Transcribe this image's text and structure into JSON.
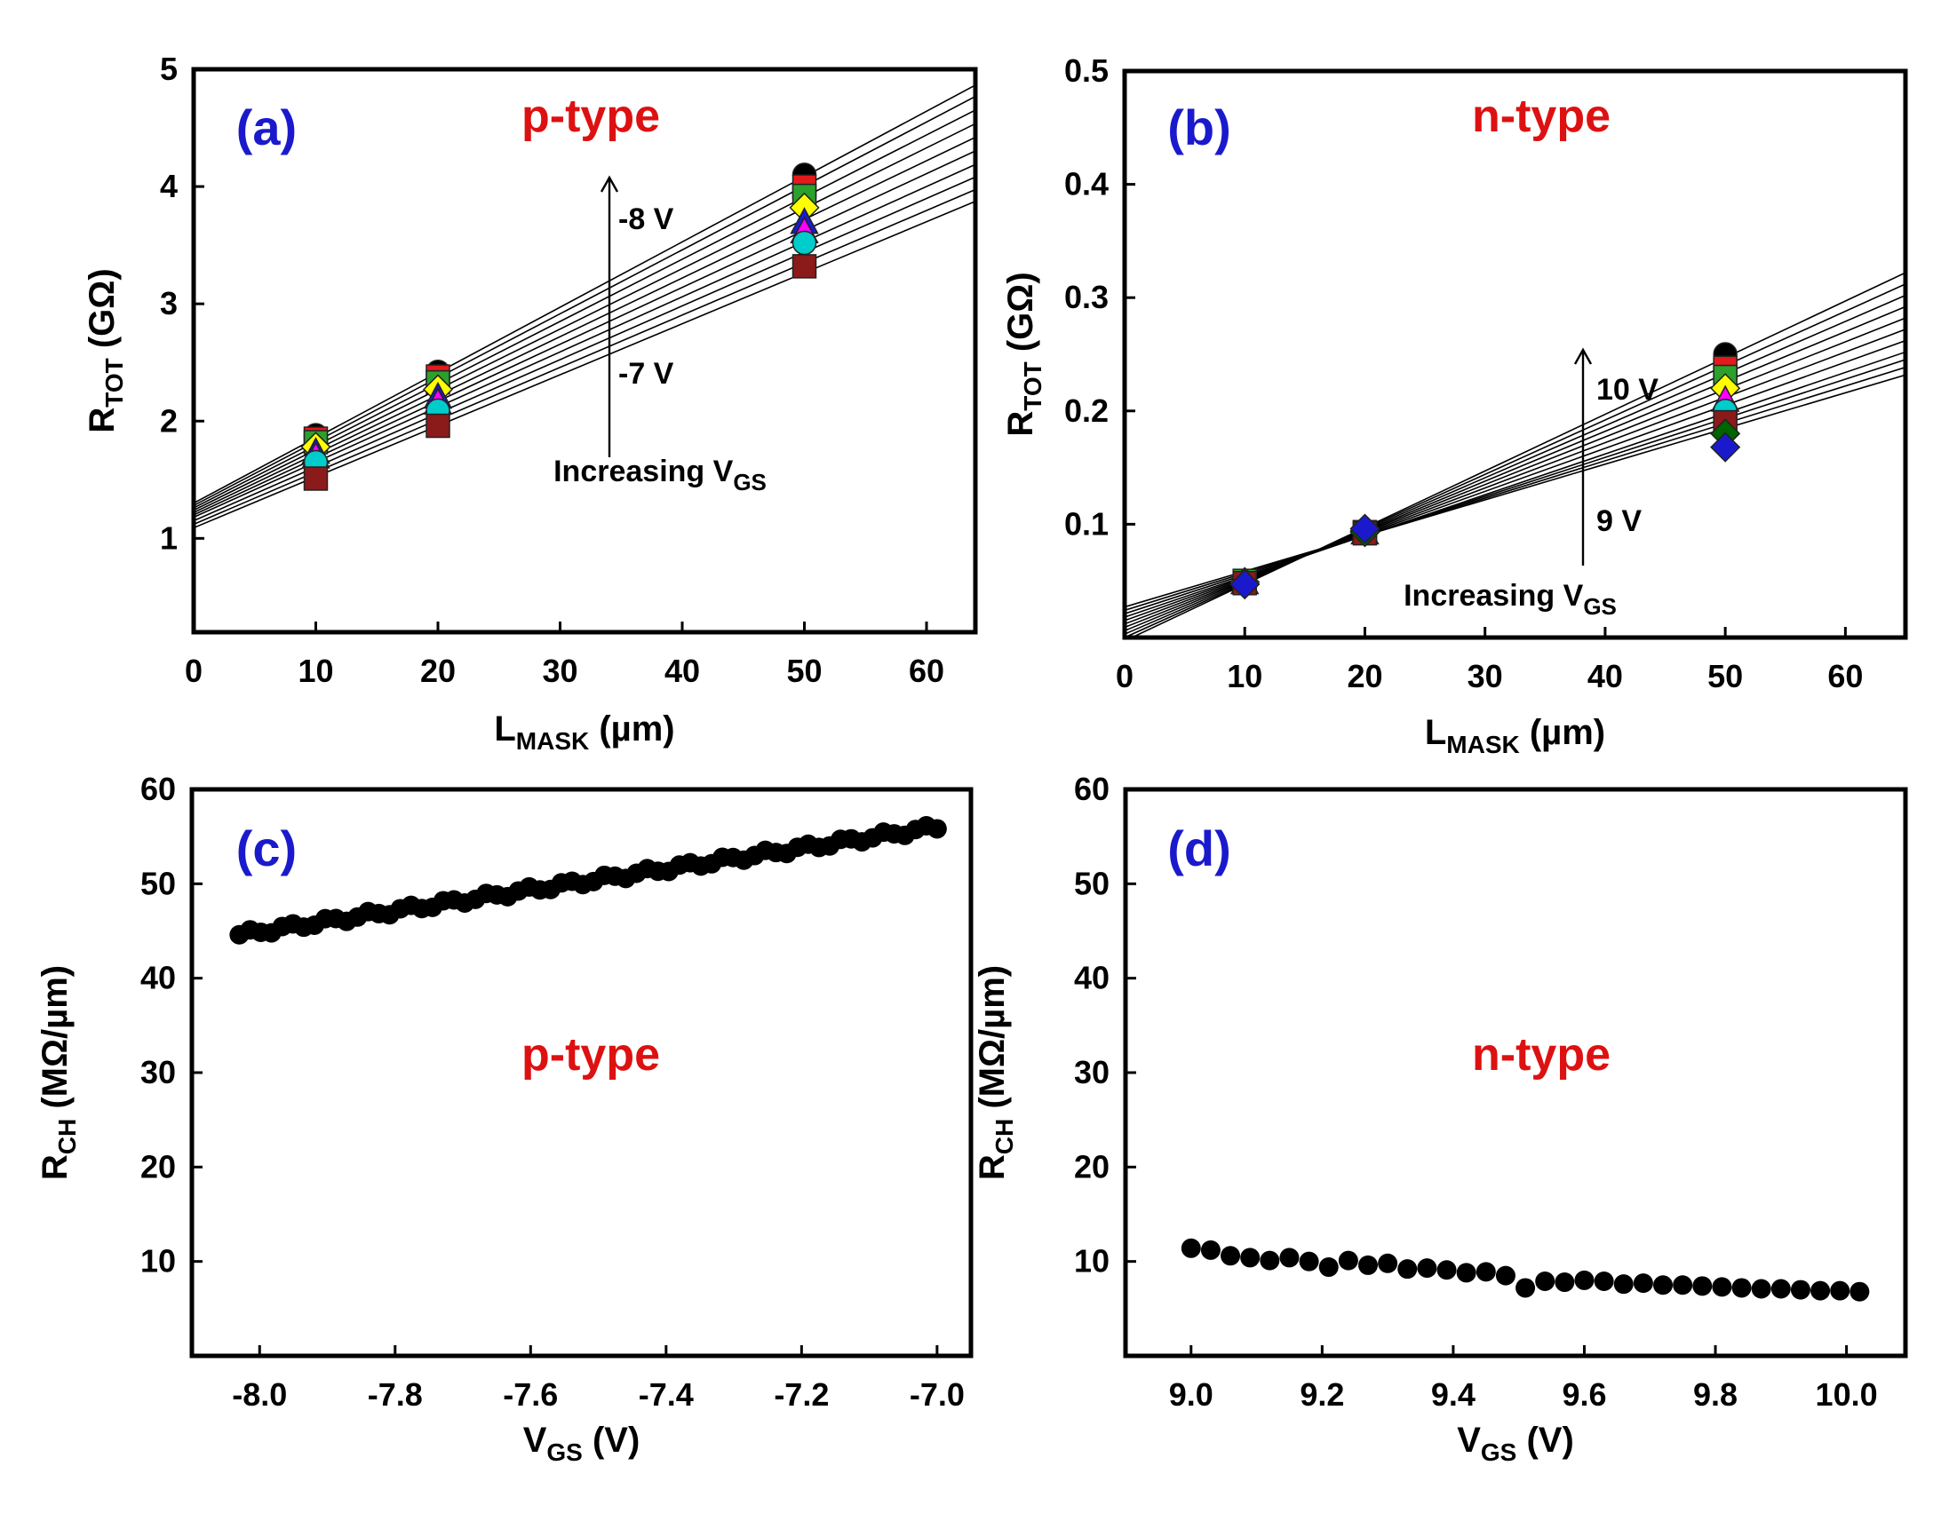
{
  "chart_data": [
    {
      "id": "a",
      "type": "scatter",
      "panel_label": "(a)",
      "type_label": "p-type",
      "xlabel": {
        "main": "L",
        "sub": "MASK",
        "unit": " (µm)"
      },
      "ylabel": {
        "main": "R",
        "sub": "TOT",
        "unit": " (GΩ)"
      },
      "xlim": [
        0,
        64
      ],
      "ylim": [
        0.2,
        5
      ],
      "xticks": [
        "0",
        "10",
        "20",
        "30",
        "40",
        "50",
        "60"
      ],
      "yticks": [
        "1",
        "2",
        "3",
        "4",
        "5"
      ],
      "annotations": {
        "top": "-8 V",
        "bottom": "-7 V",
        "caption_main": "Increasing V",
        "caption_sub": "GS"
      },
      "x": [
        10,
        20,
        50
      ],
      "series": [
        {
          "name": "-8 V",
          "color": "#000000",
          "marker": "circle",
          "values": [
            1.88,
            2.42,
            4.1
          ]
        },
        {
          "name": "series-2",
          "color": "#e31a1c",
          "marker": "square",
          "values": [
            1.85,
            2.38,
            4.0
          ]
        },
        {
          "name": "series-3",
          "color": "#2ca02c",
          "marker": "square",
          "values": [
            1.82,
            2.33,
            3.92
          ]
        },
        {
          "name": "series-4",
          "color": "#ffff00",
          "marker": "diamond",
          "values": [
            1.78,
            2.27,
            3.82
          ]
        },
        {
          "name": "series-5",
          "color": "#1a1acc",
          "marker": "triangle",
          "values": [
            1.74,
            2.21,
            3.7
          ]
        },
        {
          "name": "series-6",
          "color": "#ff00ff",
          "marker": "triangle",
          "values": [
            1.7,
            2.16,
            3.62
          ]
        },
        {
          "name": "series-7",
          "color": "#00cccc",
          "marker": "circle",
          "values": [
            1.65,
            2.09,
            3.52
          ]
        },
        {
          "name": "-7 V",
          "color": "#8b1a1a",
          "marker": "square",
          "values": [
            1.51,
            1.96,
            3.32
          ]
        }
      ],
      "fits": [
        {
          "intercept": 1.3,
          "slope": 0.0557
        },
        {
          "intercept": 1.28,
          "slope": 0.0545
        },
        {
          "intercept": 1.26,
          "slope": 0.053
        },
        {
          "intercept": 1.24,
          "slope": 0.0515
        },
        {
          "intercept": 1.22,
          "slope": 0.05
        },
        {
          "intercept": 1.2,
          "slope": 0.0485
        },
        {
          "intercept": 1.18,
          "slope": 0.047
        },
        {
          "intercept": 1.15,
          "slope": 0.0458
        },
        {
          "intercept": 1.12,
          "slope": 0.0446
        },
        {
          "intercept": 1.09,
          "slope": 0.0435
        }
      ]
    },
    {
      "id": "b",
      "type": "scatter",
      "panel_label": "(b)",
      "type_label": "n-type",
      "xlabel": {
        "main": "L",
        "sub": "MASK",
        "unit": " (µm)"
      },
      "ylabel": {
        "main": "R",
        "sub": "TOT",
        "unit": " (GΩ)"
      },
      "xlim": [
        0,
        65
      ],
      "ylim": [
        0,
        0.5
      ],
      "xticks": [
        "0",
        "10",
        "20",
        "30",
        "40",
        "50",
        "60"
      ],
      "yticks": [
        "0.1",
        "0.2",
        "0.3",
        "0.4",
        "0.5"
      ],
      "annotations": {
        "top": "10 V",
        "bottom": "9 V",
        "caption_main": "Increasing V",
        "caption_sub": "GS"
      },
      "x": [
        10,
        20,
        50
      ],
      "series": [
        {
          "name": "10 V",
          "color": "#000000",
          "marker": "circle",
          "values": [
            0.05,
            0.094,
            0.25
          ]
        },
        {
          "name": "series-2",
          "color": "#e31a1c",
          "marker": "square",
          "values": [
            0.05,
            0.093,
            0.238
          ]
        },
        {
          "name": "series-3",
          "color": "#2ca02c",
          "marker": "square",
          "values": [
            0.05,
            0.093,
            0.23
          ]
        },
        {
          "name": "series-4",
          "color": "#ffff00",
          "marker": "diamond",
          "values": [
            0.049,
            0.094,
            0.22
          ]
        },
        {
          "name": "series-5",
          "color": "#ff00ff",
          "marker": "triangle",
          "values": [
            0.049,
            0.093,
            0.21
          ]
        },
        {
          "name": "series-6",
          "color": "#00cccc",
          "marker": "circle",
          "values": [
            0.048,
            0.094,
            0.2
          ]
        },
        {
          "name": "series-7",
          "color": "#8b1a1a",
          "marker": "square",
          "values": [
            0.048,
            0.092,
            0.19
          ]
        },
        {
          "name": "series-8",
          "color": "#006400",
          "marker": "diamond",
          "values": [
            0.047,
            0.093,
            0.18
          ]
        },
        {
          "name": "9 V",
          "color": "#1a1acc",
          "marker": "diamond",
          "values": [
            0.047,
            0.096,
            0.168
          ]
        }
      ],
      "fits": [
        {
          "intercept": -0.003,
          "slope": 0.005
        },
        {
          "intercept": 0.0,
          "slope": 0.0048
        },
        {
          "intercept": 0.003,
          "slope": 0.0046
        },
        {
          "intercept": 0.006,
          "slope": 0.0044
        },
        {
          "intercept": 0.009,
          "slope": 0.0042
        },
        {
          "intercept": 0.012,
          "slope": 0.004
        },
        {
          "intercept": 0.015,
          "slope": 0.0038
        },
        {
          "intercept": 0.018,
          "slope": 0.0036
        },
        {
          "intercept": 0.021,
          "slope": 0.00345
        },
        {
          "intercept": 0.024,
          "slope": 0.0033
        },
        {
          "intercept": 0.027,
          "slope": 0.00315
        }
      ]
    },
    {
      "id": "c",
      "type": "scatter",
      "panel_label": "(c)",
      "type_label": "p-type",
      "xlabel": {
        "main": "V",
        "sub": "GS",
        "unit": " (V)"
      },
      "ylabel": {
        "main": "R",
        "sub": "CH",
        "unit": " (MΩ/µm)"
      },
      "xlim": [
        -8.1,
        -6.95
      ],
      "ylim": [
        0,
        60
      ],
      "xticks": [
        "-8.0",
        "-7.8",
        "-7.6",
        "-7.4",
        "-7.2",
        "-7.0"
      ],
      "yticks": [
        "10",
        "20",
        "30",
        "40",
        "50",
        "60"
      ],
      "points": {
        "x_start": -8.03,
        "x_end": -7.0,
        "n": 66,
        "y_start": 44.6,
        "y_end": 56.0
      }
    },
    {
      "id": "d",
      "type": "scatter",
      "panel_label": "(d)",
      "type_label": "n-type",
      "xlabel": {
        "main": "V",
        "sub": "GS",
        "unit": " (V)"
      },
      "ylabel": {
        "main": "R",
        "sub": "CH",
        "unit": " (MΩ/µm)"
      },
      "xlim": [
        8.9,
        10.09
      ],
      "ylim": [
        0,
        60
      ],
      "xticks": [
        "9.0",
        "9.2",
        "9.4",
        "9.6",
        "9.8",
        "10.0"
      ],
      "yticks": [
        "10",
        "20",
        "30",
        "40",
        "50",
        "60"
      ],
      "points": {
        "x": [
          9.0,
          9.03,
          9.06,
          9.09,
          9.12,
          9.15,
          9.18,
          9.21,
          9.24,
          9.27,
          9.3,
          9.33,
          9.36,
          9.39,
          9.42,
          9.45,
          9.48,
          9.51,
          9.54,
          9.57,
          9.6,
          9.63,
          9.66,
          9.69,
          9.72,
          9.75,
          9.78,
          9.81,
          9.84,
          9.87,
          9.9,
          9.93,
          9.96,
          9.99,
          10.02
        ],
        "y": [
          11.4,
          11.2,
          10.6,
          10.4,
          10.1,
          10.4,
          10.0,
          9.4,
          10.1,
          9.6,
          9.8,
          9.2,
          9.3,
          9.1,
          8.8,
          8.9,
          8.5,
          7.2,
          7.9,
          7.8,
          8.0,
          7.9,
          7.6,
          7.7,
          7.5,
          7.5,
          7.4,
          7.3,
          7.2,
          7.1,
          7.1,
          7.0,
          6.9,
          6.9,
          6.8
        ]
      }
    }
  ]
}
